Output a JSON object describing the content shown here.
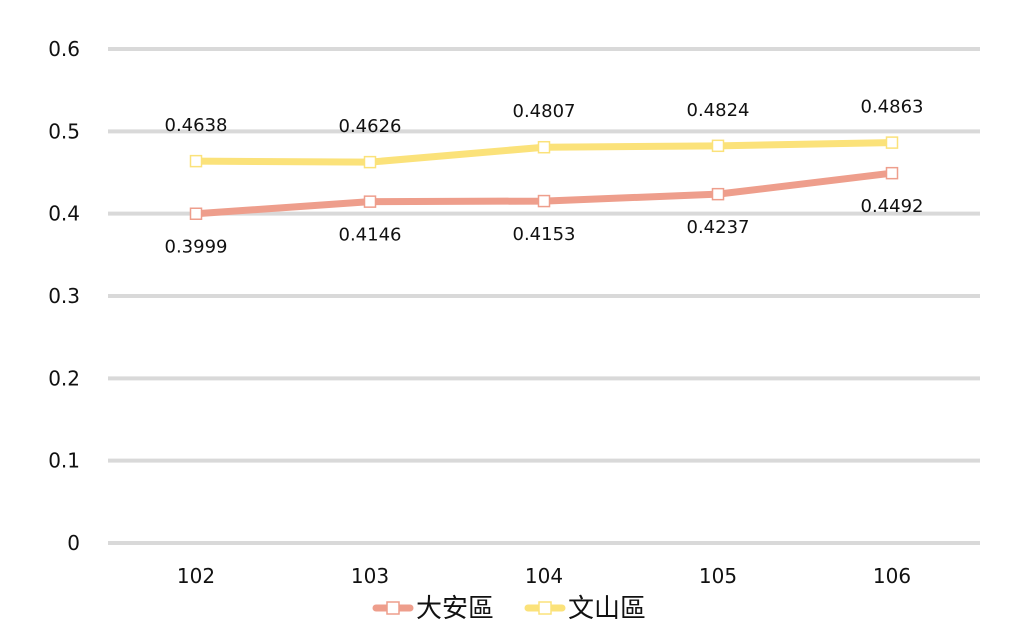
{
  "chart_data": {
    "type": "line",
    "categories": [
      "102",
      "103",
      "104",
      "105",
      "106"
    ],
    "y_ticks": [
      "0",
      "0.1",
      "0.2",
      "0.3",
      "0.4",
      "0.5",
      "0.6"
    ],
    "ylim": [
      0,
      0.6
    ],
    "grid": true,
    "legend_position": "bottom",
    "series": [
      {
        "name": "大安區",
        "color": "#EE9E8C",
        "values": [
          0.3999,
          0.4146,
          0.4153,
          0.4237,
          0.4492
        ],
        "labels": [
          "0.3999",
          "0.4146",
          "0.4153",
          "0.4237",
          "0.4492"
        ],
        "label_position": "below"
      },
      {
        "name": "文山區",
        "color": "#FBE27A",
        "values": [
          0.4638,
          0.4626,
          0.4807,
          0.4824,
          0.4863
        ],
        "labels": [
          "0.4638",
          "0.4626",
          "0.4807",
          "0.4824",
          "0.4863"
        ],
        "label_position": "above"
      }
    ],
    "gridline_color": "#D9D9D9"
  }
}
